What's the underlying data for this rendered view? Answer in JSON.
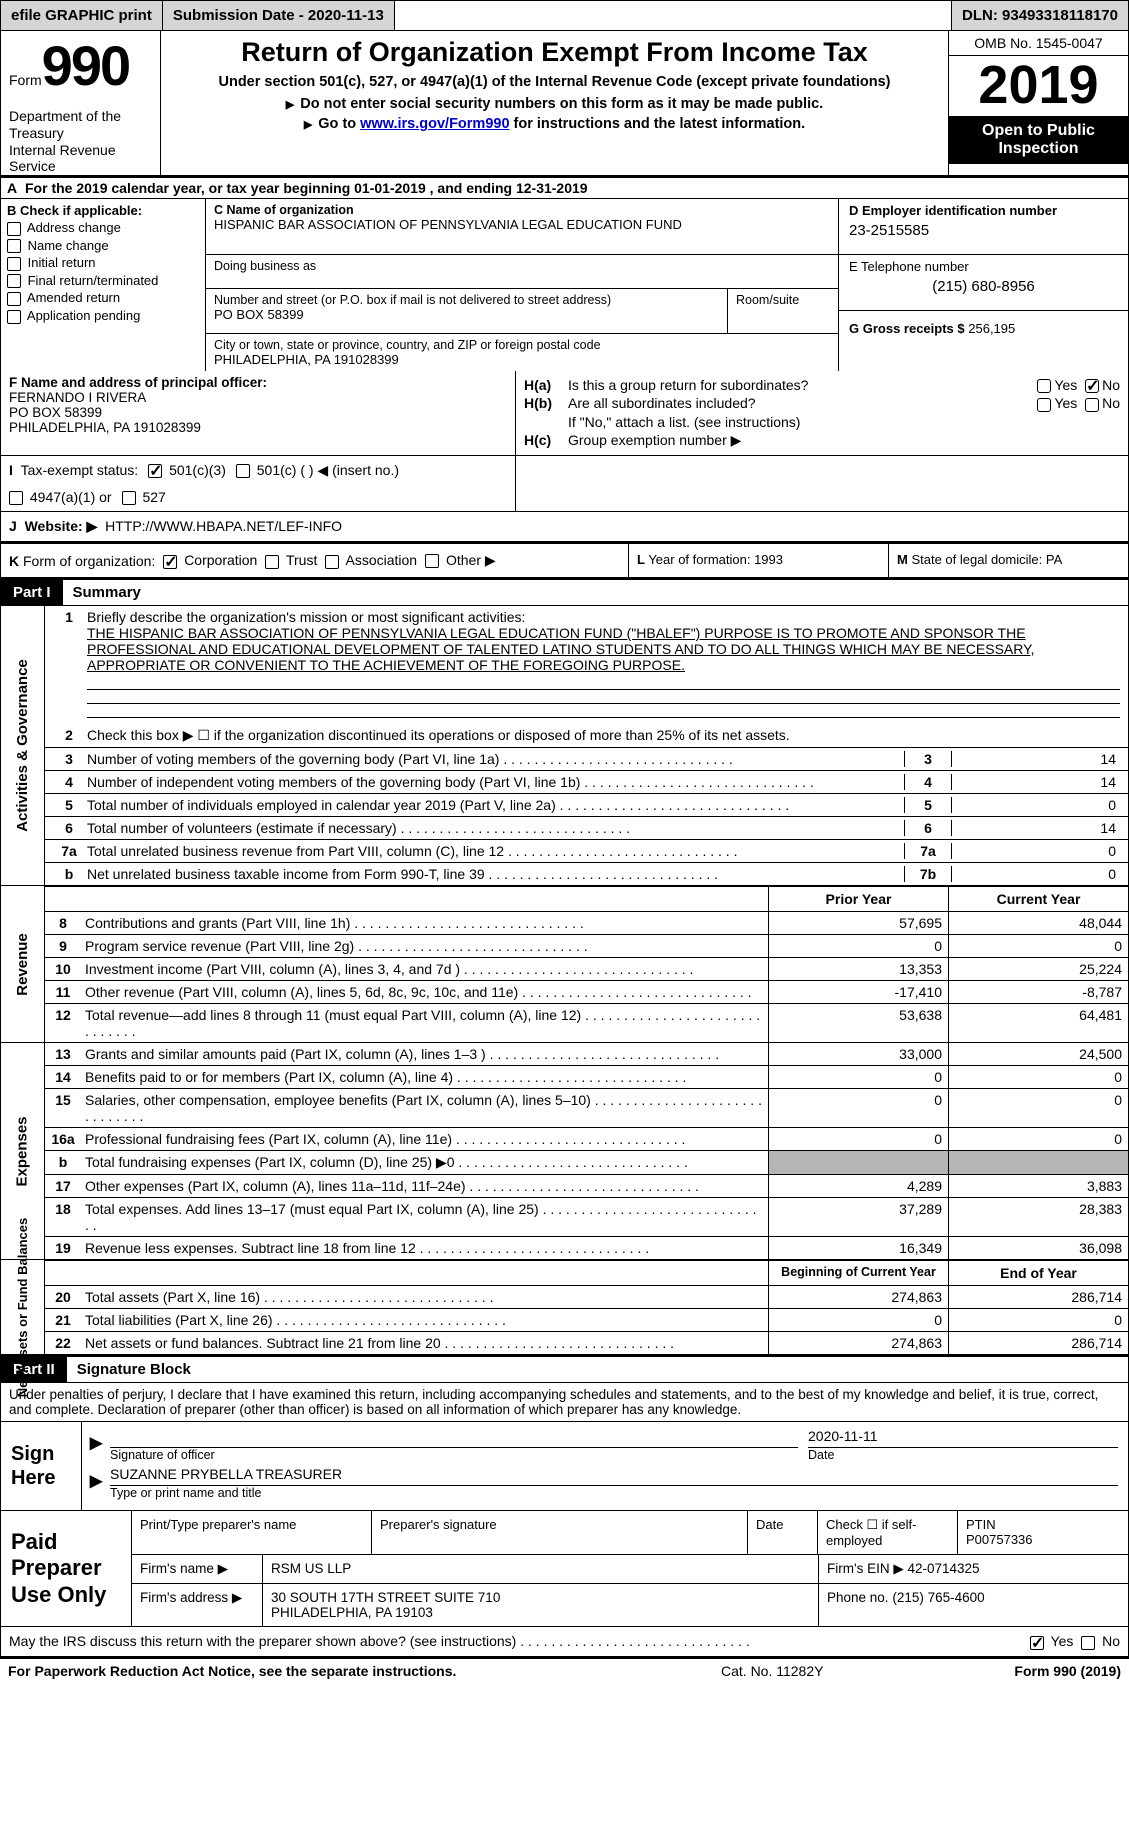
{
  "colors": {
    "gray": "#b5b5b5",
    "panel": "#d5d5d5"
  },
  "topbar": {
    "efile": "efile GRAPHIC print",
    "submission": "Submission Date - 2020-11-13",
    "dln_label": "DLN:",
    "dln": "93493318118170"
  },
  "header": {
    "form_word": "Form",
    "form_num": "990",
    "title": "Return of Organization Exempt From Income Tax",
    "sub1": "Under section 501(c), 527, or 4947(a)(1) of the Internal Revenue Code (except private foundations)",
    "sub2": "Do not enter social security numbers on this form as it may be made public.",
    "sub3_pre": "Go to ",
    "sub3_link": "www.irs.gov/Form990",
    "sub3_post": " for instructions and the latest information.",
    "dept": "Department of the Treasury\nInternal Revenue Service",
    "omb": "OMB No. 1545-0047",
    "year": "2019",
    "open": "Open to Public Inspection"
  },
  "rowA": "For the 2019 calendar year, or tax year beginning 01-01-2019   , and ending 12-31-2019",
  "B": {
    "title": "Check if applicable:",
    "items": [
      "Address change",
      "Name change",
      "Initial return",
      "Final return/terminated",
      "Amended return",
      "Application pending"
    ]
  },
  "C": {
    "leg": "C Name of organization",
    "name": "HISPANIC BAR ASSOCIATION OF PENNSYLVANIA LEGAL EDUCATION FUND",
    "dba": "Doing business as",
    "addr_leg": "Number and street (or P.O. box if mail is not delivered to street address)",
    "addr": "PO BOX 58399",
    "room_leg": "Room/suite",
    "city_leg": "City or town, state or province, country, and ZIP or foreign postal code",
    "city": "PHILADELPHIA, PA  191028399"
  },
  "D": {
    "leg": "D Employer identification number",
    "ein": "23-2515585"
  },
  "E": {
    "leg": "E Telephone number",
    "tel": "(215) 680-8956"
  },
  "G": {
    "leg": "G Gross receipts $",
    "val": "256,195"
  },
  "F": {
    "leg": "F  Name and address of principal officer:",
    "name": "FERNANDO I RIVERA",
    "l1": "PO BOX 58399",
    "l2": "PHILADELPHIA, PA  191028399"
  },
  "H": {
    "a": "Is this a group return for subordinates?",
    "b": "Are all subordinates included?",
    "b2": "If \"No,\" attach a list. (see instructions)",
    "c": "Group exemption number ▶"
  },
  "I": {
    "leg": "Tax-exempt status:",
    "o1": "501(c)(3)",
    "o2": "501(c) (  ) ◀ (insert no.)",
    "o3": "4947(a)(1) or",
    "o4": "527"
  },
  "J": {
    "leg": "Website: ▶",
    "val": "HTTP://WWW.HBAPA.NET/LEF-INFO"
  },
  "K": {
    "leg": "Form of organization:",
    "opts": [
      "Corporation",
      "Trust",
      "Association",
      "Other ▶"
    ]
  },
  "L": {
    "txt": "Year of formation: 1993"
  },
  "M": {
    "txt": "State of legal domicile: PA"
  },
  "part1": {
    "tab": "Part I",
    "title": "Summary"
  },
  "gov": {
    "side": "Activities & Governance",
    "l1_leg": "Briefly describe the organization's mission or most significant activities:",
    "l1_txt": "THE HISPANIC BAR ASSOCIATION OF PENNSYLVANIA LEGAL EDUCATION FUND (\"HBALEF\") PURPOSE IS TO PROMOTE AND SPONSOR THE PROFESSIONAL AND EDUCATIONAL DEVELOPMENT OF TALENTED LATINO STUDENTS AND TO DO ALL THINGS WHICH MAY BE NECESSARY, APPROPRIATE OR CONVENIENT TO THE ACHIEVEMENT OF THE FOREGOING PURPOSE.",
    "l2": "Check this box ▶ ☐ if the organization discontinued its operations or disposed of more than 25% of its net assets.",
    "rows": [
      {
        "n": "3",
        "t": "Number of voting members of the governing body (Part VI, line 1a)",
        "b": "3",
        "v": "14"
      },
      {
        "n": "4",
        "t": "Number of independent voting members of the governing body (Part VI, line 1b)",
        "b": "4",
        "v": "14"
      },
      {
        "n": "5",
        "t": "Total number of individuals employed in calendar year 2019 (Part V, line 2a)",
        "b": "5",
        "v": "0"
      },
      {
        "n": "6",
        "t": "Total number of volunteers (estimate if necessary)",
        "b": "6",
        "v": "14"
      },
      {
        "n": "7a",
        "t": "Total unrelated business revenue from Part VIII, column (C), line 12",
        "b": "7a",
        "v": "0"
      },
      {
        "n": "b",
        "t": "Net unrelated business taxable income from Form 990-T, line 39",
        "b": "7b",
        "v": "0"
      }
    ]
  },
  "cols": {
    "prior": "Prior Year",
    "curr": "Current Year",
    "beg": "Beginning of Current Year",
    "end": "End of Year"
  },
  "rev": {
    "side": "Revenue",
    "rows": [
      {
        "n": "8",
        "t": "Contributions and grants (Part VIII, line 1h)",
        "p": "57,695",
        "c": "48,044"
      },
      {
        "n": "9",
        "t": "Program service revenue (Part VIII, line 2g)",
        "p": "0",
        "c": "0"
      },
      {
        "n": "10",
        "t": "Investment income (Part VIII, column (A), lines 3, 4, and 7d )",
        "p": "13,353",
        "c": "25,224"
      },
      {
        "n": "11",
        "t": "Other revenue (Part VIII, column (A), lines 5, 6d, 8c, 9c, 10c, and 11e)",
        "p": "-17,410",
        "c": "-8,787"
      },
      {
        "n": "12",
        "t": "Total revenue—add lines 8 through 11 (must equal Part VIII, column (A), line 12)",
        "p": "53,638",
        "c": "64,481"
      }
    ]
  },
  "exp": {
    "side": "Expenses",
    "rows": [
      {
        "n": "13",
        "t": "Grants and similar amounts paid (Part IX, column (A), lines 1–3 )",
        "p": "33,000",
        "c": "24,500"
      },
      {
        "n": "14",
        "t": "Benefits paid to or for members (Part IX, column (A), line 4)",
        "p": "0",
        "c": "0"
      },
      {
        "n": "15",
        "t": "Salaries, other compensation, employee benefits (Part IX, column (A), lines 5–10)",
        "p": "0",
        "c": "0"
      },
      {
        "n": "16a",
        "t": "Professional fundraising fees (Part IX, column (A), line 11e)",
        "p": "0",
        "c": "0"
      },
      {
        "n": "b",
        "t": "Total fundraising expenses (Part IX, column (D), line 25) ▶0",
        "p": "__gray__",
        "c": "__gray__"
      },
      {
        "n": "17",
        "t": "Other expenses (Part IX, column (A), lines 11a–11d, 11f–24e)",
        "p": "4,289",
        "c": "3,883"
      },
      {
        "n": "18",
        "t": "Total expenses. Add lines 13–17 (must equal Part IX, column (A), line 25)",
        "p": "37,289",
        "c": "28,383"
      },
      {
        "n": "19",
        "t": "Revenue less expenses. Subtract line 18 from line 12",
        "p": "16,349",
        "c": "36,098"
      }
    ]
  },
  "net": {
    "side": "Net Assets or Fund Balances",
    "rows": [
      {
        "n": "20",
        "t": "Total assets (Part X, line 16)",
        "p": "274,863",
        "c": "286,714"
      },
      {
        "n": "21",
        "t": "Total liabilities (Part X, line 26)",
        "p": "0",
        "c": "0"
      },
      {
        "n": "22",
        "t": "Net assets or fund balances. Subtract line 21 from line 20",
        "p": "274,863",
        "c": "286,714"
      }
    ]
  },
  "part2": {
    "tab": "Part II",
    "title": "Signature Block",
    "decl": "Under penalties of perjury, I declare that I have examined this return, including accompanying schedules and statements, and to the best of my knowledge and belief, it is true, correct, and complete. Declaration of preparer (other than officer) is based on all information of which preparer has any knowledge."
  },
  "sign": {
    "side": "Sign Here",
    "sig_cap": "Signature of officer",
    "date": "2020-11-11",
    "date_cap": "Date",
    "name": "SUZANNE PRYBELLA  TREASURER",
    "name_cap": "Type or print name and title"
  },
  "paid": {
    "side": "Paid Preparer Use Only",
    "h": [
      "Print/Type preparer's name",
      "Preparer's signature",
      "Date",
      "Check ☐ if self-employed",
      "PTIN\nP00757336"
    ],
    "firm_lbl": "Firm's name  ▶",
    "firm": "RSM US LLP",
    "ein_lbl": "Firm's EIN ▶",
    "ein": "42-0714325",
    "addr_lbl": "Firm's address ▶",
    "addr1": "30 SOUTH 17TH STREET SUITE 710",
    "addr2": "PHILADELPHIA, PA  19103",
    "phone_lbl": "Phone no.",
    "phone": "(215) 765-4600"
  },
  "may": "May the IRS discuss this return with the preparer shown above? (see instructions)",
  "footer": {
    "l": "For Paperwork Reduction Act Notice, see the separate instructions.",
    "m": "Cat. No. 11282Y",
    "r": "Form 990 (2019)"
  }
}
